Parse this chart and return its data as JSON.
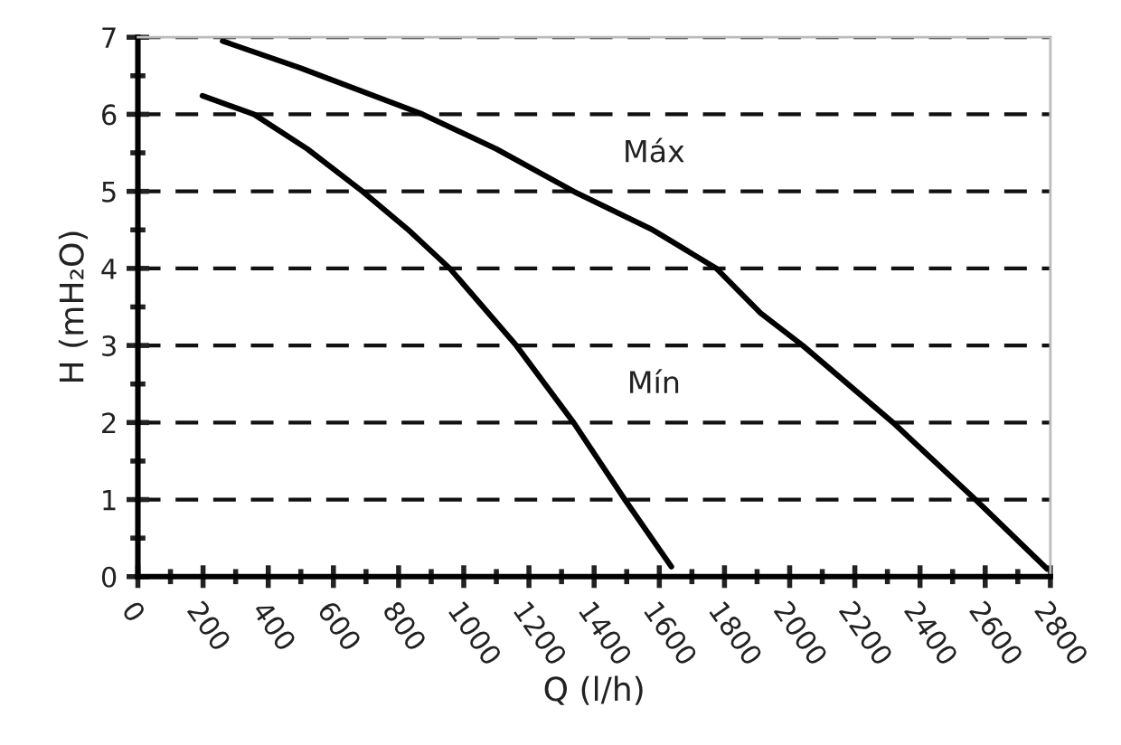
{
  "chart_data": {
    "type": "line",
    "xlabel": "Q (l/h)",
    "ylabel": "H (mH₂O)",
    "series": [
      {
        "name": "Máx",
        "color": "#000000",
        "x": [
          260,
          500,
          874,
          1100,
          1337,
          1580,
          1775,
          1911,
          2040,
          2317,
          2570,
          2790
        ],
        "values": [
          6.95,
          6.6,
          6,
          5.55,
          5,
          4.5,
          4,
          3.42,
          3,
          2,
          1,
          0.1
        ]
      },
      {
        "name": "Mín",
        "color": "#000000",
        "x": [
          198,
          356,
          520,
          689,
          830,
          957,
          1161,
          1337,
          1494,
          1637
        ],
        "values": [
          6.24,
          6,
          5.55,
          5,
          4.5,
          4,
          3,
          2,
          1,
          0.13
        ]
      }
    ],
    "xlim": [
      0,
      2800
    ],
    "xticks": [
      0,
      200,
      400,
      600,
      800,
      1000,
      1200,
      1400,
      1600,
      1800,
      2000,
      2200,
      2400,
      2600,
      2800
    ],
    "ylim": [
      0,
      7
    ],
    "yticks": [
      0,
      1,
      2,
      3,
      4,
      5,
      6,
      7
    ],
    "grid": "y",
    "marker": "none",
    "line_style": "solid"
  }
}
